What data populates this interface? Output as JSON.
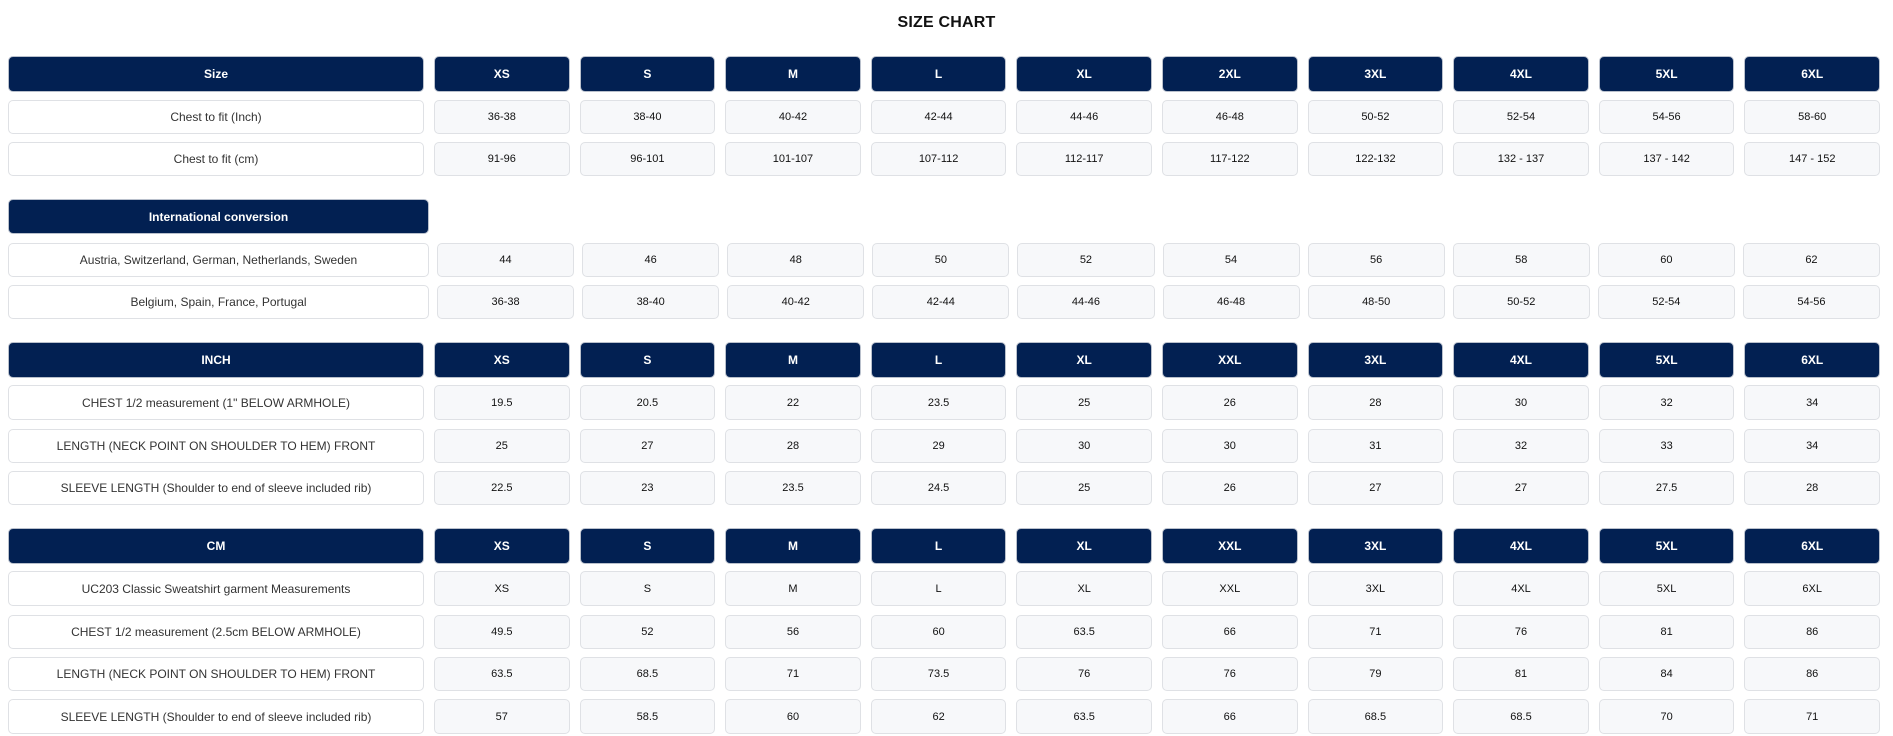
{
  "title": "SIZE CHART",
  "colors": {
    "header_bg": "#022052",
    "header_text": "#ffffff",
    "cell_bg": "#f7f8fa"
  },
  "sections": [
    {
      "id": "size",
      "header": [
        "Size",
        "XS",
        "S",
        "M",
        "L",
        "XL",
        "2XL",
        "3XL",
        "4XL",
        "5XL",
        "6XL"
      ],
      "rows": [
        [
          "Chest to fit (Inch)",
          "36-38",
          "38-40",
          "40-42",
          "42-44",
          "44-46",
          "46-48",
          "50-52",
          "52-54",
          "54-56",
          "58-60"
        ],
        [
          "Chest to fit (cm)",
          "91-96",
          "96-101",
          "101-107",
          "107-112",
          "112-117",
          "117-122",
          "122-132",
          "132 - 137",
          "137 - 142",
          "147 - 152"
        ]
      ]
    },
    {
      "id": "international",
      "header": [
        "International conversion"
      ],
      "rows": [
        [
          "Austria, Switzerland, German, Netherlands, Sweden",
          "44",
          "46",
          "48",
          "50",
          "52",
          "54",
          "56",
          "58",
          "60",
          "62"
        ],
        [
          "Belgium, Spain, France, Portugal",
          "36-38",
          "38-40",
          "40-42",
          "42-44",
          "44-46",
          "46-48",
          "48-50",
          "50-52",
          "52-54",
          "54-56"
        ]
      ]
    },
    {
      "id": "inch",
      "header": [
        "INCH",
        "XS",
        "S",
        "M",
        "L",
        "XL",
        "XXL",
        "3XL",
        "4XL",
        "5XL",
        "6XL"
      ],
      "rows": [
        [
          "CHEST 1/2 measurement (1\" BELOW ARMHOLE)",
          "19.5",
          "20.5",
          "22",
          "23.5",
          "25",
          "26",
          "28",
          "30",
          "32",
          "34"
        ],
        [
          "LENGTH (NECK POINT ON SHOULDER TO HEM) FRONT",
          "25",
          "27",
          "28",
          "29",
          "30",
          "30",
          "31",
          "32",
          "33",
          "34"
        ],
        [
          "SLEEVE LENGTH (Shoulder to end of sleeve included rib)",
          "22.5",
          "23",
          "23.5",
          "24.5",
          "25",
          "26",
          "27",
          "27",
          "27.5",
          "28"
        ]
      ]
    },
    {
      "id": "cm",
      "header": [
        "CM",
        "XS",
        "S",
        "M",
        "L",
        "XL",
        "XXL",
        "3XL",
        "4XL",
        "5XL",
        "6XL"
      ],
      "rows": [
        [
          "UC203 Classic Sweatshirt garment Measurements",
          "XS",
          "S",
          "M",
          "L",
          "XL",
          "XXL",
          "3XL",
          "4XL",
          "5XL",
          "6XL"
        ],
        [
          "CHEST 1/2 measurement (2.5cm BELOW ARMHOLE)",
          "49.5",
          "52",
          "56",
          "60",
          "63.5",
          "66",
          "71",
          "76",
          "81",
          "86"
        ],
        [
          "LENGTH (NECK POINT ON SHOULDER TO HEM) FRONT",
          "63.5",
          "68.5",
          "71",
          "73.5",
          "76",
          "76",
          "79",
          "81",
          "84",
          "86"
        ],
        [
          "SLEEVE LENGTH (Shoulder to end of sleeve included rib)",
          "57",
          "58.5",
          "60",
          "62",
          "63.5",
          "66",
          "68.5",
          "68.5",
          "70",
          "71"
        ]
      ]
    }
  ]
}
